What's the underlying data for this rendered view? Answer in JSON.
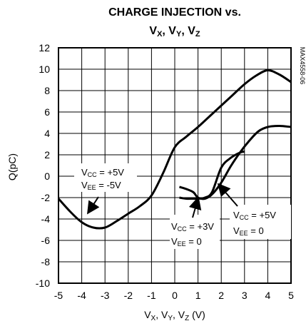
{
  "chart_data": {
    "type": "line",
    "title_line1": "CHARGE INJECTION vs.",
    "title_line2": {
      "v": "V",
      "x": "X",
      "sep1": ", V",
      "y": "Y",
      "sep2": ", V",
      "z": "Z"
    },
    "xlabel": {
      "v": "V",
      "x": "X",
      "sep1": ", V",
      "y": "Y",
      "sep2": ", V",
      "z": "Z",
      "unit": " (V)"
    },
    "ylabel": "Q(pC)",
    "xlim": [
      -5,
      5
    ],
    "ylim": [
      -10,
      12
    ],
    "xticks": [
      "-5",
      "-4",
      "-3",
      "-2",
      "-1",
      "0",
      "1",
      "2",
      "3",
      "4",
      "5"
    ],
    "yticks": [
      "12",
      "10",
      "8",
      "6",
      "4",
      "2",
      "0",
      "-2",
      "-4",
      "-6",
      "-8",
      "-10"
    ],
    "grid": true,
    "side_label": "MAX4558-06",
    "series": [
      {
        "x": [
          -5,
          -4.5,
          -4,
          -3.5,
          -3,
          -2.5,
          -2,
          -1.5,
          -1,
          -0.5,
          0,
          0.5,
          1,
          1.5,
          2,
          2.5,
          3,
          3.5,
          4,
          4.5,
          5
        ],
        "y": [
          -2.1,
          -3.3,
          -4.3,
          -4.8,
          -4.8,
          -4.2,
          -3.5,
          -2.8,
          -1.8,
          0.3,
          2.7,
          3.7,
          4.6,
          5.6,
          6.6,
          7.6,
          8.6,
          9.4,
          9.9,
          9.5,
          8.8
        ]
      },
      {
        "x": [
          0.2,
          0.5,
          0.8,
          1.0,
          1.3,
          1.6,
          2.0,
          2.4,
          2.8,
          3.2,
          3.6,
          4.0,
          4.5,
          5
        ],
        "y": [
          -1.0,
          -1.2,
          -1.5,
          -2.0,
          -2.1,
          -1.7,
          -0.6,
          0.9,
          2.2,
          3.3,
          4.2,
          4.6,
          4.7,
          4.6
        ]
      },
      {
        "x": [
          0.2,
          0.5,
          0.8,
          1.0,
          1.3,
          1.6,
          2.0,
          2.4,
          2.8,
          3.0
        ],
        "y": [
          -2.0,
          -2.1,
          -2.1,
          -2.1,
          -2.0,
          -1.5,
          0.8,
          1.7,
          2.2,
          2.3
        ]
      }
    ],
    "annotations": [
      {
        "id": "left",
        "vcc_v": "V",
        "vcc_s": "CC",
        "vcc_val": " = +5V",
        "vee_v": "V",
        "vee_s": "EE",
        "vee_val": " = -5V"
      },
      {
        "id": "mid",
        "vcc_v": "V",
        "vcc_s": "CC",
        "vcc_val": " = +3V",
        "vee_v": "V",
        "vee_s": "EE",
        "vee_val": " = 0"
      },
      {
        "id": "right",
        "vcc_v": "V",
        "vcc_s": "CC",
        "vcc_val": " = +5V",
        "vee_v": "V",
        "vee_s": "EE",
        "vee_val": " = 0"
      }
    ]
  }
}
